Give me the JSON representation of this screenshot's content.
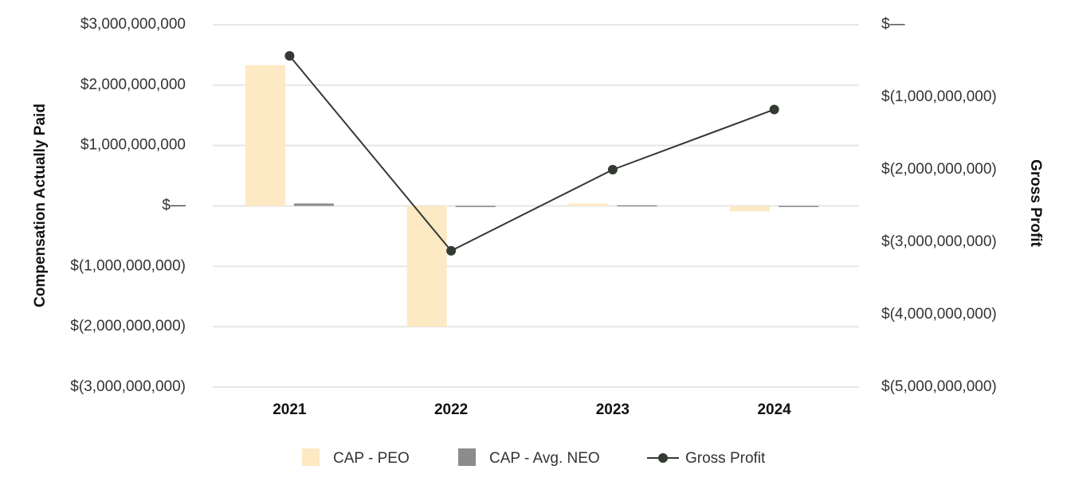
{
  "chart_data": {
    "type": "bar",
    "categories": [
      "2021",
      "2022",
      "2023",
      "2024"
    ],
    "series": [
      {
        "name": "CAP - PEO",
        "type": "bar",
        "axis": "left",
        "color": "#fde9c3",
        "values": [
          2330000000,
          -2000000000,
          40000000,
          -90000000
        ]
      },
      {
        "name": "CAP - Avg. NEO",
        "type": "bar",
        "axis": "left",
        "color": "#8c8c8c",
        "values": [
          40000000,
          -20000000,
          10000000,
          -15000000
        ]
      },
      {
        "name": "Gross Profit",
        "type": "line",
        "axis": "right",
        "color": "#333a33",
        "values": [
          -430000000,
          -3120000000,
          -2000000000,
          -1170000000
        ]
      }
    ],
    "ylabel": "Compensation Actually Paid",
    "y2label": "Gross Profit",
    "ylim": [
      -3000000000,
      3000000000
    ],
    "y2lim": [
      -5000000000,
      0
    ],
    "yticks": [
      "$3,000,000,000",
      "$2,000,000,000",
      "$1,000,000,000",
      "$—",
      "$(1,000,000,000)",
      "$(2,000,000,000)",
      "$(3,000,000,000)"
    ],
    "y2ticks": [
      "$—",
      "$(1,000,000,000)",
      "$(2,000,000,000)",
      "$(3,000,000,000)",
      "$(4,000,000,000)",
      "$(5,000,000,000)"
    ],
    "grid": true,
    "legend_position": "bottom-center"
  }
}
